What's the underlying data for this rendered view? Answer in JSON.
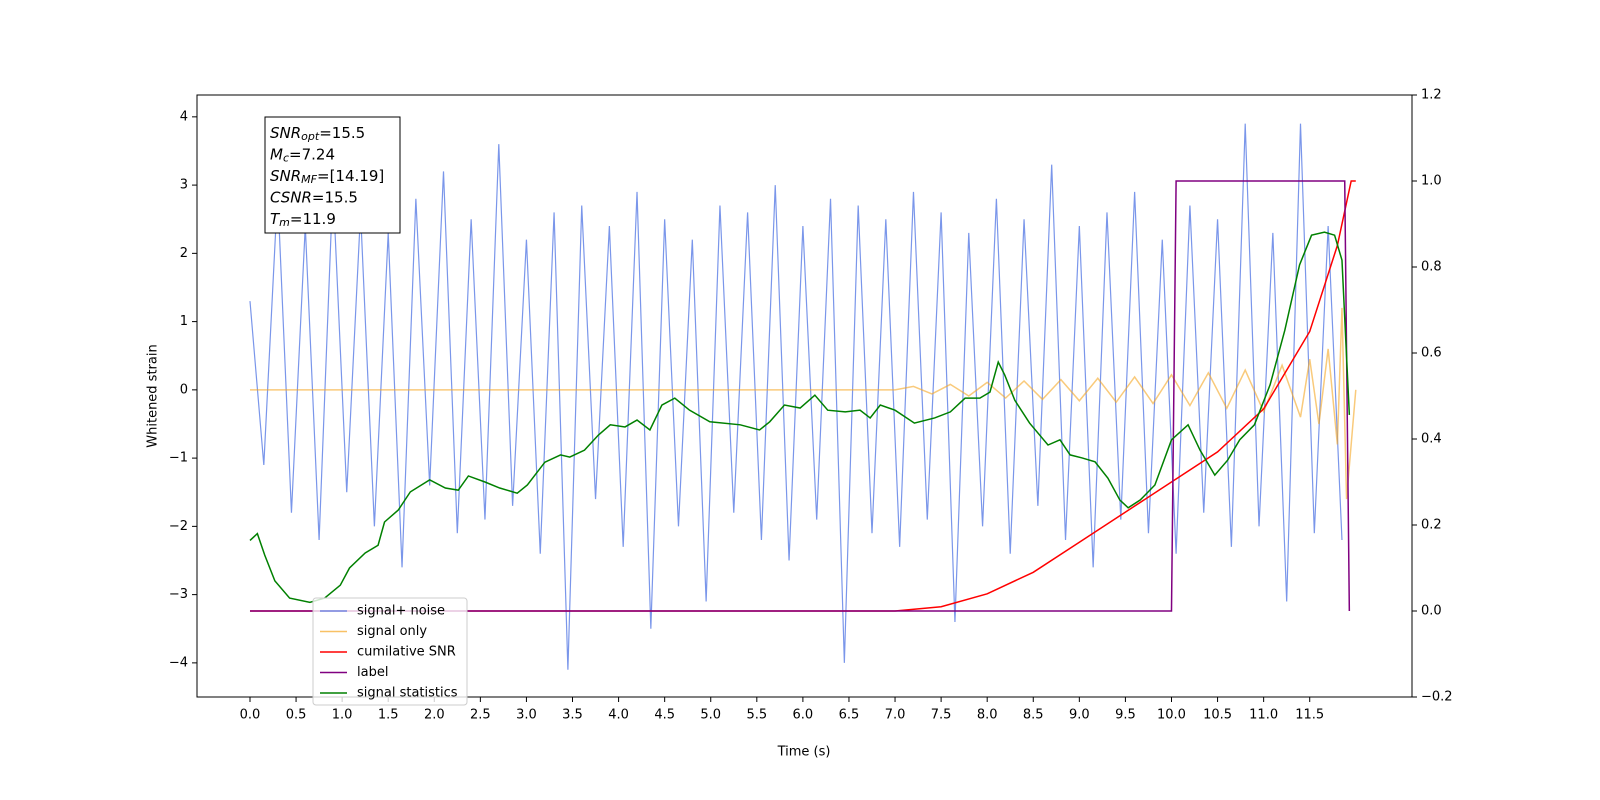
{
  "chart_data": {
    "type": "line",
    "x_label": "Time (s)",
    "y_label": "Whitened strain",
    "xlim": [
      -0.575,
      12.61
    ],
    "ylim": [
      -4.5,
      4.32
    ],
    "y2lim": [
      -0.2,
      1.2
    ],
    "xticks": [
      {
        "value": 0,
        "label": "0.0"
      },
      {
        "value": 0.5,
        "label": "0.5"
      },
      {
        "value": 1,
        "label": "1.0"
      },
      {
        "value": 1.5,
        "label": "1.5"
      },
      {
        "value": 2,
        "label": "2.0"
      },
      {
        "value": 2.5,
        "label": "2.5"
      },
      {
        "value": 3,
        "label": "3.0"
      },
      {
        "value": 3.5,
        "label": "3.5"
      },
      {
        "value": 4,
        "label": "4.0"
      },
      {
        "value": 4.5,
        "label": "4.5"
      },
      {
        "value": 5,
        "label": "5.0"
      },
      {
        "value": 5.5,
        "label": "5.5"
      },
      {
        "value": 6,
        "label": "6.0"
      },
      {
        "value": 6.5,
        "label": "6.5"
      },
      {
        "value": 7,
        "label": "7.0"
      },
      {
        "value": 7.5,
        "label": "7.5"
      },
      {
        "value": 8,
        "label": "8.0"
      },
      {
        "value": 8.5,
        "label": "8.5"
      },
      {
        "value": 9,
        "label": "9.0"
      },
      {
        "value": 9.5,
        "label": "9.5"
      },
      {
        "value": 10,
        "label": "10.0"
      },
      {
        "value": 10.5,
        "label": "10.5"
      },
      {
        "value": 11,
        "label": "11.0"
      },
      {
        "value": 11.5,
        "label": "11.5"
      }
    ],
    "yticks": [
      {
        "value": -4,
        "label": "−4"
      },
      {
        "value": -3,
        "label": "−3"
      },
      {
        "value": -2,
        "label": "−2"
      },
      {
        "value": -1,
        "label": "−1"
      },
      0,
      1,
      2,
      3,
      4
    ],
    "y2ticks": [
      {
        "value": -0.2,
        "label": "−0.2"
      },
      {
        "value": 0,
        "label": "0.0"
      },
      0.2,
      0.4,
      0.6,
      0.8,
      {
        "value": 1,
        "label": "1.0"
      },
      1.2
    ],
    "annotation": [
      {
        "base": "SNR",
        "sub": "opt",
        "text": "=15.5"
      },
      {
        "base": "M",
        "sub": "c",
        "text": "=7.24"
      },
      {
        "base": "SNR",
        "sub": "MF",
        "text": "=[14.19]"
      },
      {
        "base": "CSNR",
        "text": "=15.5"
      },
      {
        "base": "T",
        "sub": "m",
        "text": "=11.9"
      }
    ],
    "series": [
      {
        "name": "signal+ noise",
        "color": "#4169e1",
        "x": [
          0,
          0.15,
          0.3,
          0.45,
          0.6,
          0.75,
          0.9,
          1.05,
          1.2,
          1.35,
          1.5,
          1.65,
          1.8,
          1.95,
          2.1,
          2.25,
          2.4,
          2.55,
          2.7,
          2.85,
          3,
          3.15,
          3.3,
          3.45,
          3.6,
          3.75,
          3.9,
          4.05,
          4.2,
          4.35,
          4.5,
          4.65,
          4.8,
          4.95,
          5.1,
          5.25,
          5.4,
          5.55,
          5.7,
          5.85,
          6,
          6.15,
          6.3,
          6.45,
          6.6,
          6.75,
          6.9,
          7.05,
          7.2,
          7.35,
          7.5,
          7.65,
          7.8,
          7.95,
          8.1,
          8.25,
          8.4,
          8.55,
          8.7,
          8.85,
          9,
          9.15,
          9.3,
          9.45,
          9.6,
          9.75,
          9.9,
          10.05,
          10.2,
          10.35,
          10.5,
          10.65,
          10.8,
          10.95,
          11.1,
          11.25,
          11.4,
          11.55,
          11.7,
          11.85
        ],
        "values": [
          1.3,
          -1.1,
          2.9,
          -1.8,
          2.4,
          -2.2,
          3.0,
          -1.5,
          2.6,
          -2.0,
          2.3,
          -2.6,
          2.8,
          -1.4,
          3.2,
          -2.1,
          2.5,
          -1.9,
          3.6,
          -1.7,
          2.2,
          -2.4,
          2.6,
          -4.1,
          2.7,
          -1.6,
          2.4,
          -2.3,
          2.9,
          -3.5,
          2.5,
          -2.0,
          2.2,
          -3.1,
          2.7,
          -1.8,
          2.6,
          -2.2,
          3.0,
          -2.5,
          2.4,
          -1.9,
          2.8,
          -4.0,
          2.7,
          -2.1,
          2.5,
          -2.3,
          2.9,
          -1.9,
          2.6,
          -3.4,
          2.3,
          -2.0,
          2.8,
          -2.4,
          2.5,
          -1.7,
          3.3,
          -2.2,
          2.4,
          -2.6,
          2.6,
          -1.9,
          2.9,
          -2.1,
          2.2,
          -2.4,
          2.7,
          -1.8,
          2.5,
          -2.3,
          3.9,
          -2.0,
          2.3,
          -3.1,
          3.9,
          -2.1,
          2.4,
          -2.2
        ]
      },
      {
        "name": "signal only",
        "color": "#f5a623",
        "x": [
          0,
          7.0,
          7.2,
          7.4,
          7.6,
          7.8,
          8.0,
          8.2,
          8.4,
          8.6,
          8.8,
          9.0,
          9.2,
          9.4,
          9.6,
          9.8,
          10.0,
          10.2,
          10.4,
          10.6,
          10.8,
          11.0,
          11.2,
          11.4,
          11.5,
          11.6,
          11.7,
          11.8,
          11.85,
          11.9,
          12.0
        ],
        "values": [
          0,
          0,
          0.05,
          -0.06,
          0.08,
          -0.09,
          0.11,
          -0.12,
          0.13,
          -0.14,
          0.15,
          -0.16,
          0.17,
          -0.18,
          0.19,
          -0.2,
          0.22,
          -0.23,
          0.25,
          -0.27,
          0.29,
          -0.32,
          0.36,
          -0.4,
          0.45,
          -0.5,
          0.6,
          -0.8,
          1.2,
          -1.6,
          0
        ]
      },
      {
        "name": "cumilative SNR",
        "color": "#ff0000",
        "axis": "y2",
        "x": [
          0,
          7,
          7.5,
          8,
          8.5,
          9,
          9.5,
          10,
          10.5,
          11,
          11.5,
          11.8,
          11.9,
          11.95,
          12.0
        ],
        "values": [
          0,
          0,
          0.01,
          0.04,
          0.09,
          0.16,
          0.23,
          0.3,
          0.37,
          0.47,
          0.65,
          0.85,
          0.95,
          1.0,
          1.0
        ]
      },
      {
        "name": "label",
        "color": "#800080",
        "axis": "y2",
        "x": [
          0,
          10.0,
          10.05,
          11.88,
          11.93
        ],
        "values": [
          0,
          0,
          1,
          1,
          0
        ]
      },
      {
        "name": "signal statistics",
        "color": "#008000",
        "axis": "y2",
        "x": [
          0,
          0.08,
          0.16,
          0.27,
          0.43,
          0.65,
          0.81,
          0.98,
          1.08,
          1.25,
          1.39,
          1.46,
          1.61,
          1.74,
          1.95,
          2.12,
          2.26,
          2.37,
          2.55,
          2.71,
          2.9,
          3.01,
          3.2,
          3.37,
          3.47,
          3.63,
          3.78,
          3.91,
          4.07,
          4.2,
          4.34,
          4.47,
          4.61,
          4.77,
          4.99,
          5.32,
          5.53,
          5.64,
          5.8,
          5.97,
          6.13,
          6.27,
          6.46,
          6.62,
          6.73,
          6.84,
          7.0,
          7.21,
          7.43,
          7.6,
          7.76,
          7.92,
          8.03,
          8.12,
          8.19,
          8.3,
          8.46,
          8.66,
          8.79,
          8.9,
          9.03,
          9.17,
          9.31,
          9.44,
          9.53,
          9.66,
          9.82,
          10.0,
          10.18,
          10.31,
          10.47,
          10.61,
          10.74,
          10.9,
          11.07,
          11.23,
          11.39,
          11.52,
          11.66,
          11.77,
          11.85,
          11.93
        ],
        "values": [
          0.164,
          0.18,
          0.13,
          0.07,
          0.03,
          0.02,
          0.03,
          0.06,
          0.1,
          0.135,
          0.153,
          0.207,
          0.235,
          0.277,
          0.305,
          0.286,
          0.281,
          0.314,
          0.3,
          0.286,
          0.274,
          0.293,
          0.346,
          0.363,
          0.358,
          0.374,
          0.409,
          0.433,
          0.428,
          0.444,
          0.421,
          0.479,
          0.495,
          0.467,
          0.44,
          0.433,
          0.421,
          0.44,
          0.479,
          0.472,
          0.502,
          0.467,
          0.463,
          0.467,
          0.449,
          0.479,
          0.467,
          0.437,
          0.449,
          0.463,
          0.495,
          0.495,
          0.509,
          0.579,
          0.549,
          0.49,
          0.437,
          0.386,
          0.398,
          0.363,
          0.356,
          0.347,
          0.309,
          0.258,
          0.24,
          0.258,
          0.293,
          0.398,
          0.433,
          0.374,
          0.316,
          0.351,
          0.398,
          0.433,
          0.526,
          0.653,
          0.805,
          0.874,
          0.881,
          0.874,
          0.816,
          0.456
        ]
      }
    ]
  }
}
